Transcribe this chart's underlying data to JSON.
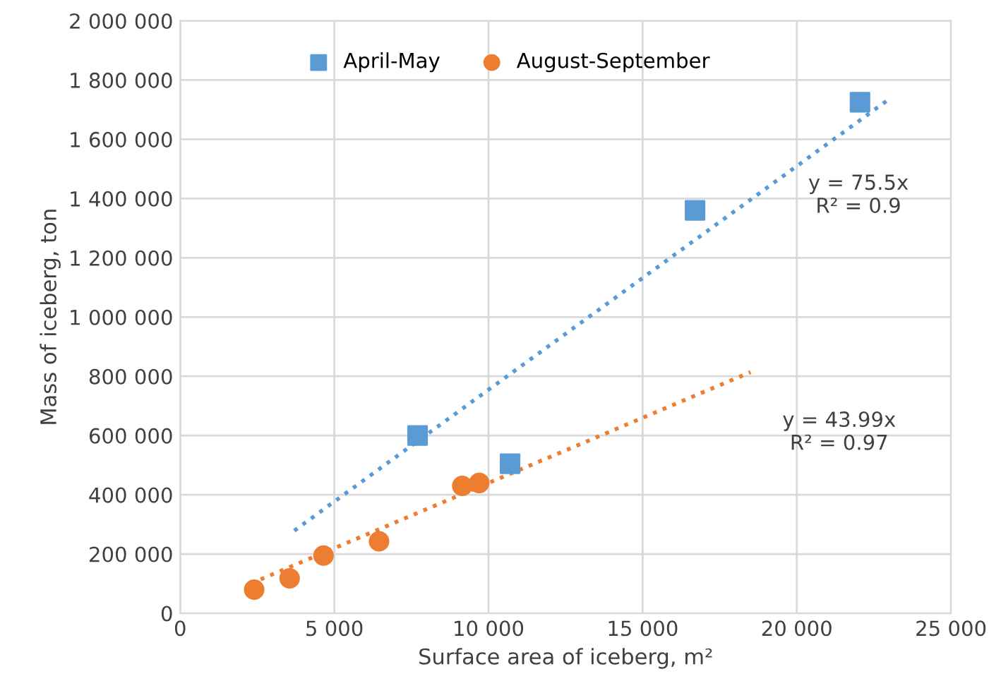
{
  "chart_data": {
    "type": "scatter",
    "xlabel": "Surface area of iceberg, m²",
    "ylabel": "Mass of iceberg, ton",
    "xlim": [
      0,
      25000
    ],
    "ylim": [
      0,
      2000000
    ],
    "xticks": [
      0,
      {
        "value": 5000,
        "label": "5 000"
      },
      {
        "value": 10000,
        "label": "10 000"
      },
      {
        "value": 15000,
        "label": "15 000"
      },
      {
        "value": 20000,
        "label": "20 000"
      },
      {
        "value": 25000,
        "label": "25 000"
      }
    ],
    "yticks": [
      0,
      {
        "value": 200000,
        "label": "200 000"
      },
      {
        "value": 400000,
        "label": "400 000"
      },
      {
        "value": 600000,
        "label": "600 000"
      },
      {
        "value": 800000,
        "label": "800 000"
      },
      {
        "value": 1000000,
        "label": "1 000 000"
      },
      {
        "value": 1200000,
        "label": "1 200 000"
      },
      {
        "value": 1400000,
        "label": "1 400 000"
      },
      {
        "value": 1600000,
        "label": "1 600 000"
      },
      {
        "value": 1800000,
        "label": "1 800 000"
      },
      {
        "value": 2000000,
        "label": "2 000 000"
      }
    ],
    "grid": true,
    "legend": "top",
    "series": [
      {
        "name": "April-May",
        "color": "#5b9bd5",
        "marker": "square",
        "x": [
          7700,
          10700,
          16700,
          22050
        ],
        "values": [
          600000,
          505000,
          1360000,
          1725000
        ]
      },
      {
        "name": "August-September",
        "color": "#ed7d31",
        "marker": "circle",
        "x": [
          2400,
          3550,
          4650,
          6450,
          9150,
          9700
        ],
        "values": [
          80000,
          118000,
          195000,
          243000,
          430000,
          440000
        ]
      },
      {
        "type": "line",
        "color": "#5b9bd5",
        "line_style": "dotted",
        "marker": "none",
        "x": [
          3700,
          23000
        ],
        "values": [
          279000,
          1736000
        ]
      },
      {
        "type": "line",
        "color": "#ed7d31",
        "line_style": "dotted",
        "marker": "none",
        "x": [
          2300,
          18500
        ],
        "values": [
          101000,
          814000
        ]
      }
    ],
    "annotations": [
      "y = 75.5x\nR² = 0.9",
      "y = 43.99x\nR² = 0.97"
    ]
  }
}
